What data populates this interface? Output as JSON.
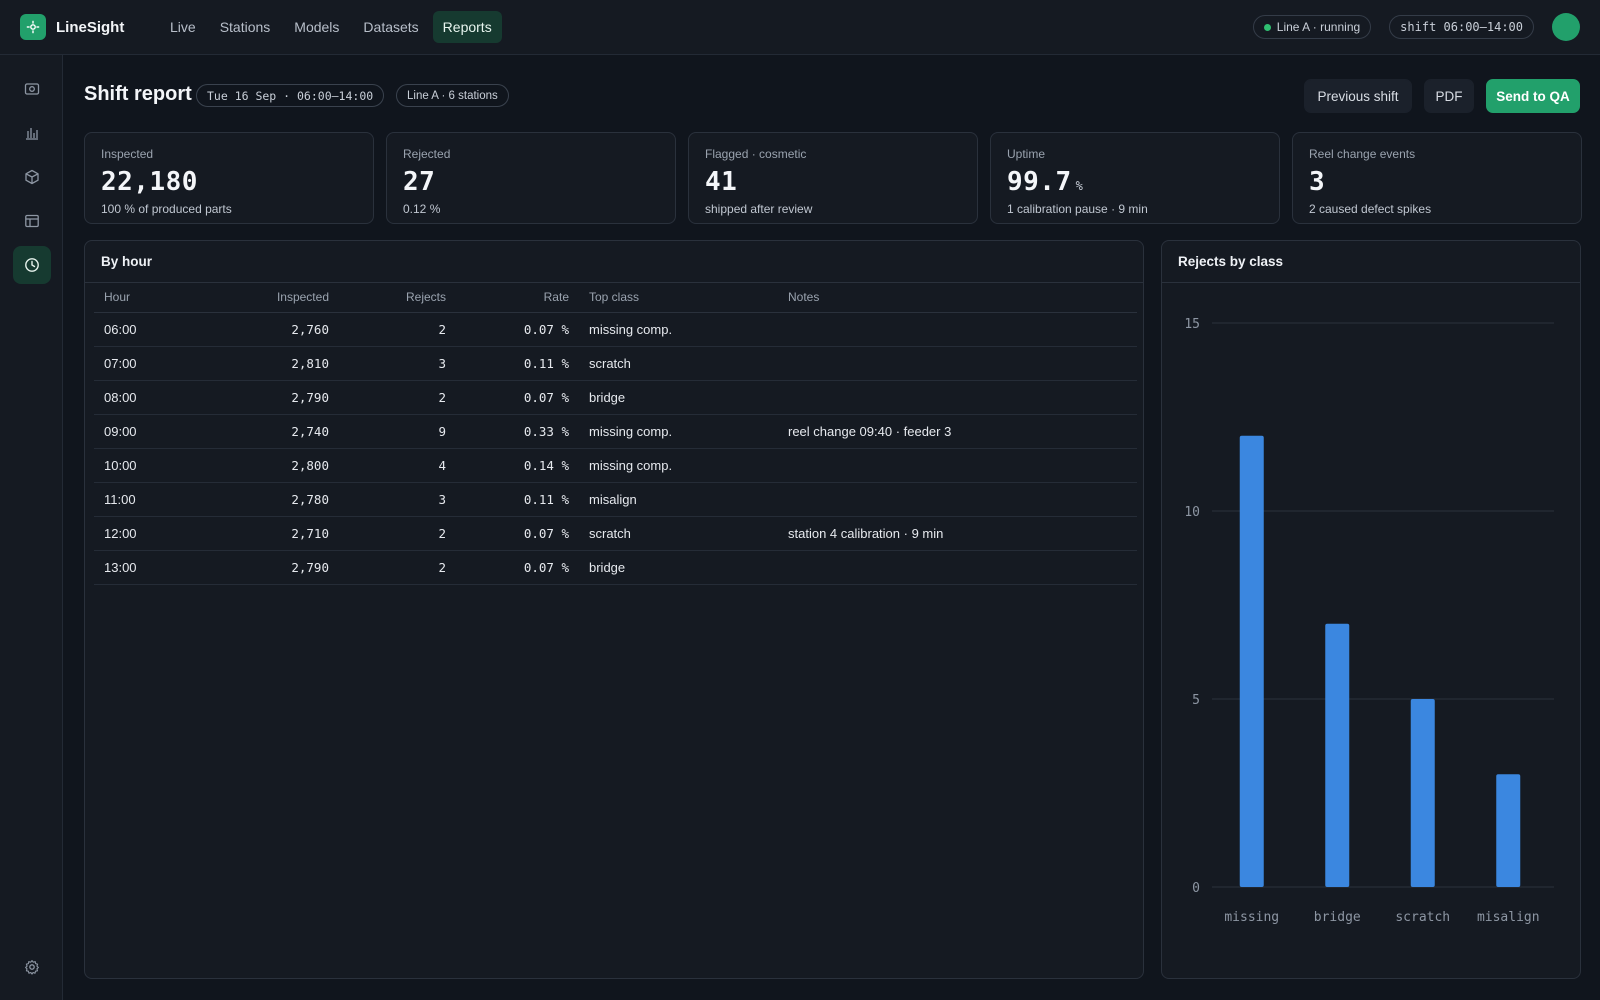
{
  "app": {
    "name": "LineSight"
  },
  "nav": [
    "Live",
    "Stations",
    "Models",
    "Datasets",
    "Reports"
  ],
  "status": {
    "line": "Line A · running",
    "shift": "shift 06:00–14:00"
  },
  "page": {
    "title": "Shift report",
    "date_pill": "Tue 16 Sep · 06:00–14:00",
    "line_pill": "Line A · 6 stations",
    "buttons": {
      "previous": "Previous shift",
      "pdf": "PDF",
      "send": "Send to QA"
    }
  },
  "kpis": [
    {
      "label": "Inspected",
      "value": "22,180",
      "unit": "",
      "sub": "100 % of produced parts"
    },
    {
      "label": "Rejected",
      "value": "27",
      "unit": "",
      "sub": "0.12 %"
    },
    {
      "label": "Flagged · cosmetic",
      "value": "41",
      "unit": "",
      "sub": "shipped after review"
    },
    {
      "label": "Uptime",
      "value": "99.7",
      "unit": "%",
      "sub": "1 calibration pause · 9 min"
    },
    {
      "label": "Reel change events",
      "value": "3",
      "unit": "",
      "sub": "2 caused defect spikes"
    }
  ],
  "table": {
    "title": "By hour",
    "columns": [
      "Hour",
      "Inspected",
      "Rejects",
      "Rate",
      "Top class",
      "Notes"
    ],
    "rows": [
      [
        "06:00",
        "2,760",
        "2",
        "0.07 %",
        "missing comp.",
        ""
      ],
      [
        "07:00",
        "2,810",
        "3",
        "0.11 %",
        "scratch",
        ""
      ],
      [
        "08:00",
        "2,790",
        "2",
        "0.07 %",
        "bridge",
        ""
      ],
      [
        "09:00",
        "2,740",
        "9",
        "0.33 %",
        "missing comp.",
        "reel change 09:40 · feeder 3"
      ],
      [
        "10:00",
        "2,800",
        "4",
        "0.14 %",
        "missing comp.",
        ""
      ],
      [
        "11:00",
        "2,780",
        "3",
        "0.11 %",
        "misalign",
        ""
      ],
      [
        "12:00",
        "2,710",
        "2",
        "0.07 %",
        "scratch",
        "station 4 calibration · 9 min"
      ],
      [
        "13:00",
        "2,790",
        "2",
        "0.07 %",
        "bridge",
        ""
      ]
    ]
  },
  "chart_data": {
    "type": "bar",
    "title": "Rejects by class",
    "categories": [
      "missing",
      "bridge",
      "scratch",
      "misalign"
    ],
    "values": [
      12,
      7,
      5,
      3
    ],
    "ylim": [
      0,
      15
    ],
    "yticks": [
      0,
      5,
      10,
      15
    ],
    "grid": true,
    "color": "#3b87e0"
  },
  "colors": {
    "accent": "#22a06b",
    "bar": "#3b87e0",
    "background": "#10151d"
  }
}
